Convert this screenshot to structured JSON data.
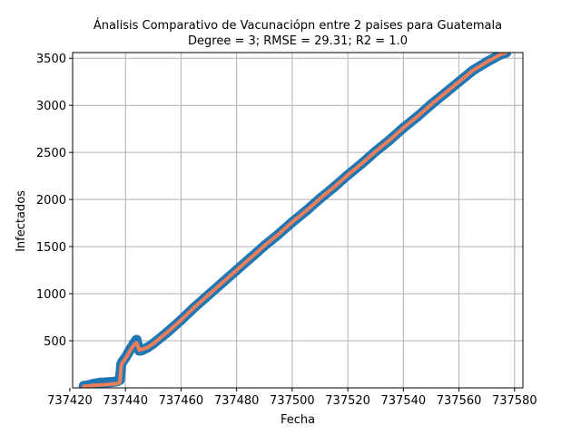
{
  "chart_data": {
    "type": "scatter",
    "title": "Ánalisis Comparativo de Vacunaciópn entre 2 paises para Guatemala",
    "subtitle": "Degree = 3; RMSE = 29.31; R2 = 1.0",
    "xlabel": "Fecha",
    "ylabel": "Infectados",
    "xlim": [
      737421,
      737583
    ],
    "ylim": [
      0,
      3560
    ],
    "grid": true,
    "x_ticks": [
      737420,
      737440,
      737460,
      737480,
      737500,
      737520,
      737540,
      737560,
      737580
    ],
    "y_ticks": [
      500,
      1000,
      1500,
      2000,
      2500,
      3000,
      3500
    ],
    "x_tick_labels": [
      "737420",
      "737440",
      "737460",
      "737480",
      "737500",
      "737520",
      "737540",
      "737560",
      "737580"
    ],
    "y_tick_labels": [
      "500",
      "1000",
      "1500",
      "2000",
      "2500",
      "3000",
      "3500"
    ],
    "colors": {
      "observed": "#1f77b4",
      "fitted": "#ee7d5a"
    },
    "series": [
      {
        "role": "observed",
        "style": "markers",
        "x": [
          737425,
          737426,
          737427,
          737428,
          737429,
          737430,
          737431,
          737432,
          737433,
          737434,
          737435,
          737436,
          737437,
          737438,
          737438.5,
          737439,
          737440,
          737441,
          737442,
          737443,
          737444,
          737445,
          737446,
          737448,
          737450,
          737455,
          737460,
          737465,
          737470,
          737475,
          737480,
          737485,
          737490,
          737495,
          737500,
          737505,
          737510,
          737515,
          737520,
          737525,
          737530,
          737535,
          737540,
          737545,
          737550,
          737555,
          737560,
          737565,
          737570,
          737575,
          737577
        ],
        "y": [
          20,
          25,
          30,
          40,
          45,
          50,
          55,
          55,
          58,
          60,
          62,
          65,
          70,
          85,
          250,
          280,
          320,
          370,
          420,
          470,
          510,
          395,
          400,
          430,
          470,
          590,
          720,
          860,
          990,
          1120,
          1250,
          1380,
          1510,
          1630,
          1760,
          1880,
          2010,
          2130,
          2260,
          2380,
          2510,
          2630,
          2760,
          2880,
          3010,
          3130,
          3250,
          3370,
          3460,
          3540,
          3560
        ]
      },
      {
        "role": "fitted",
        "style": "line",
        "x": [
          737425,
          737426,
          737427,
          737428,
          737429,
          737430,
          737431,
          737432,
          737433,
          737434,
          737435,
          737436,
          737437,
          737438,
          737438.5,
          737439,
          737440,
          737441,
          737442,
          737443,
          737444,
          737445,
          737446,
          737448,
          737450,
          737455,
          737460,
          737465,
          737470,
          737475,
          737480,
          737485,
          737490,
          737495,
          737500,
          737505,
          737510,
          737515,
          737520,
          737525,
          737530,
          737535,
          737540,
          737545,
          737550,
          737555,
          737560,
          737565,
          737570,
          737575,
          737577
        ],
        "y": [
          15,
          18,
          20,
          25,
          28,
          30,
          32,
          33,
          35,
          38,
          40,
          42,
          45,
          60,
          240,
          270,
          310,
          360,
          410,
          455,
          480,
          400,
          410,
          430,
          470,
          590,
          720,
          860,
          990,
          1120,
          1250,
          1380,
          1510,
          1630,
          1760,
          1880,
          2010,
          2130,
          2260,
          2380,
          2510,
          2630,
          2760,
          2880,
          3010,
          3130,
          3250,
          3370,
          3460,
          3540,
          3560
        ]
      }
    ]
  }
}
